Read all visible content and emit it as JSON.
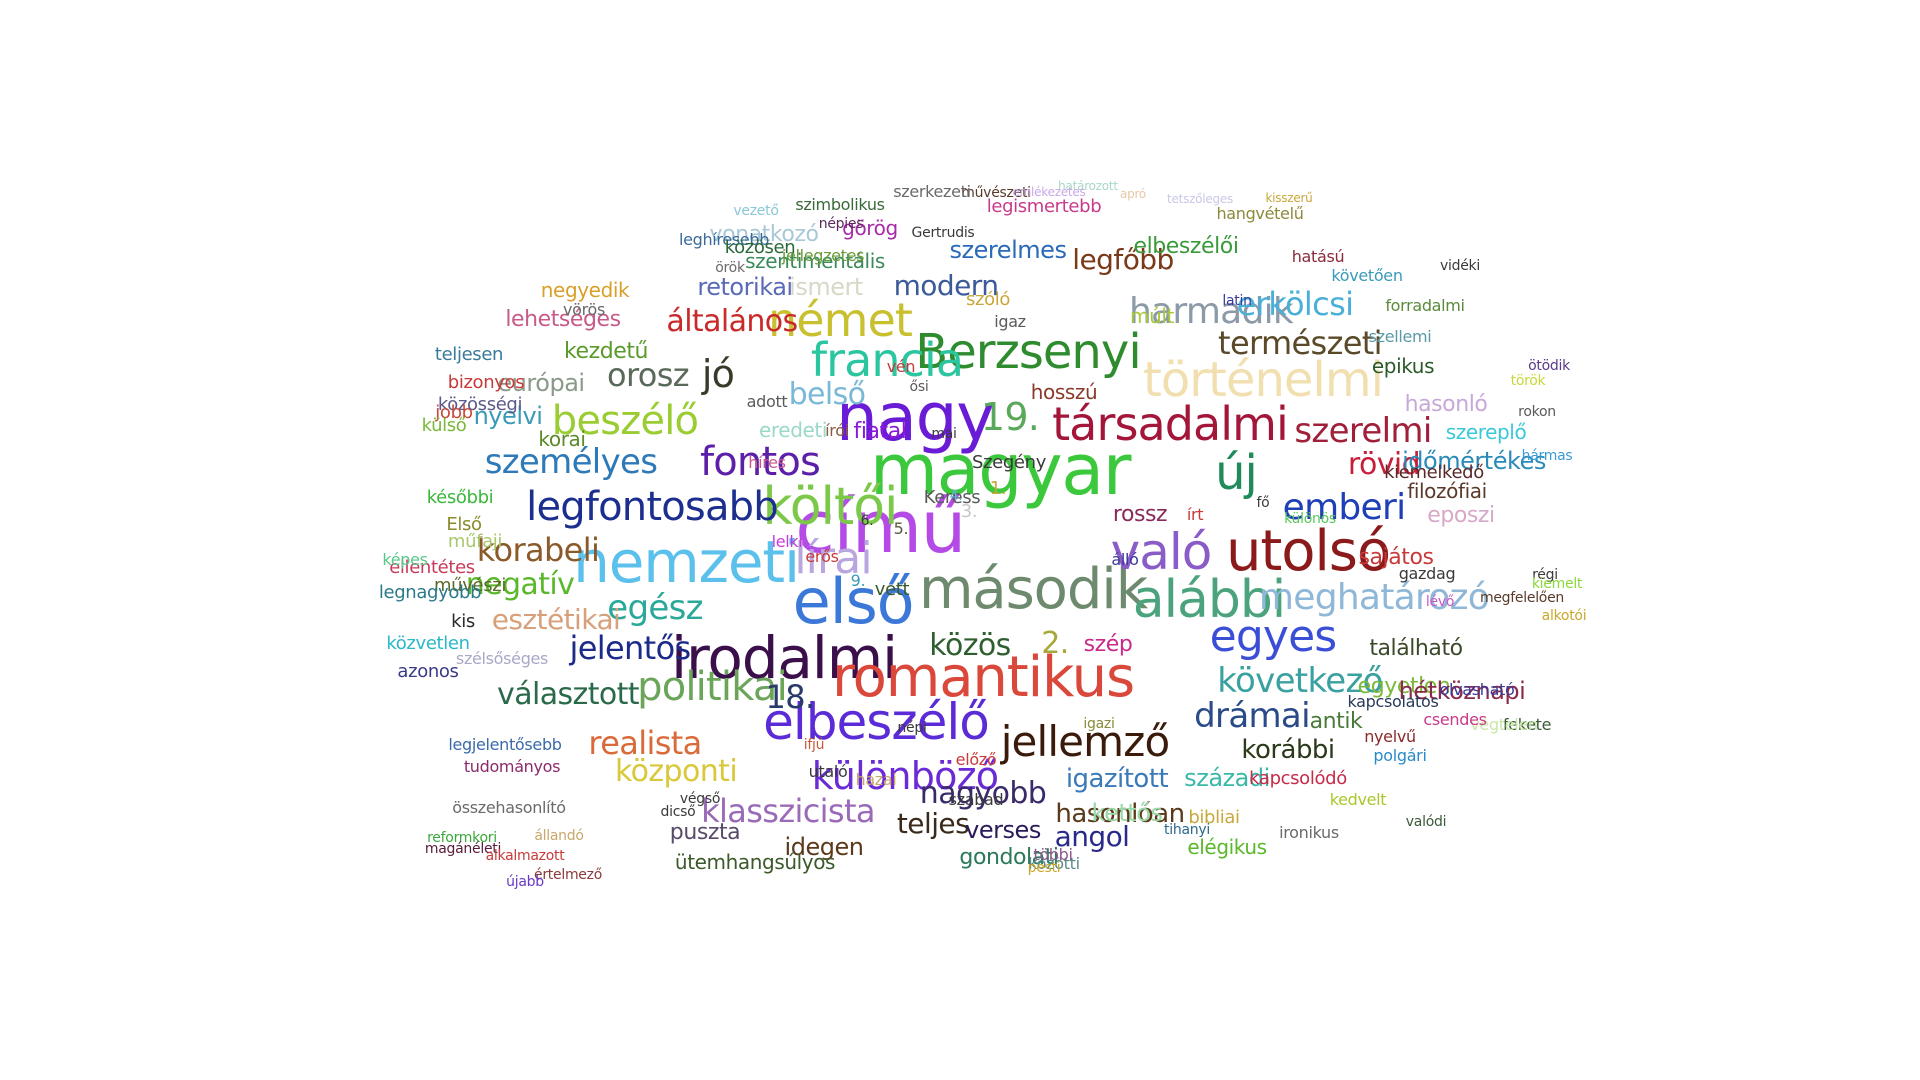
{
  "words": [
    {
      "text": "magyar",
      "color": "#3cc83c"
    },
    {
      "text": "című",
      "color": "#b44be6"
    },
    {
      "text": "nagy",
      "color": "#6a1bd6"
    },
    {
      "text": "első",
      "color": "#3c78d8"
    },
    {
      "text": "irodalmi",
      "color": "#3a0f4a"
    },
    {
      "text": "romantikus",
      "color": "#d9483b"
    },
    {
      "text": "második",
      "color": "#6e8a6e"
    },
    {
      "text": "nemzeti",
      "color": "#5bc0eb"
    },
    {
      "text": "utolsó",
      "color": "#8b1a1a"
    },
    {
      "text": "alábbi",
      "color": "#4aa37c"
    },
    {
      "text": "költői",
      "color": "#7cc94a"
    },
    {
      "text": "elbeszélő",
      "color": "#5a2bd6"
    },
    {
      "text": "történelmi",
      "color": "#f2dfb0"
    },
    {
      "text": "társadalmi",
      "color": "#a3163a"
    },
    {
      "text": "Berzsenyi",
      "color": "#2e8b2e"
    },
    {
      "text": "francia",
      "color": "#2bc6a0"
    },
    {
      "text": "német",
      "color": "#c9c030"
    },
    {
      "text": "egyes",
      "color": "#3a4fd6"
    },
    {
      "text": "való",
      "color": "#8a5cc8"
    },
    {
      "text": "politikai",
      "color": "#6aa55a"
    },
    {
      "text": "legfontosabb",
      "color": "#1c2f8f"
    },
    {
      "text": "jellemző",
      "color": "#3a1a0a"
    },
    {
      "text": "fontos",
      "color": "#5b1fa8"
    },
    {
      "text": "lírai",
      "color": "#b9a6e0"
    },
    {
      "text": "beszélő",
      "color": "#9acd32"
    },
    {
      "text": "harmadik",
      "color": "#8c9aa8"
    },
    {
      "text": "különböző",
      "color": "#6a2bd6"
    },
    {
      "text": "meghatározó",
      "color": "#8fb8d8"
    },
    {
      "text": "emberi",
      "color": "#1f3fb8"
    },
    {
      "text": "új",
      "color": "#1f8b5a"
    },
    {
      "text": "szerelmi",
      "color": "#a0203a"
    },
    {
      "text": "következő",
      "color": "#3aa0a0"
    },
    {
      "text": "személyes",
      "color": "#2e7ab8"
    },
    {
      "text": "egész",
      "color": "#2aa89a"
    },
    {
      "text": "közös",
      "color": "#2f5f2f"
    },
    {
      "text": "természeti",
      "color": "#5a4a2a"
    },
    {
      "text": "realista",
      "color": "#d96a3a"
    },
    {
      "text": "jelentős",
      "color": "#1c2a8a"
    },
    {
      "text": "drámai",
      "color": "#2a4a8a"
    },
    {
      "text": "erkölcsi",
      "color": "#4ab0d8"
    },
    {
      "text": "klasszicista",
      "color": "#9a6ab8"
    },
    {
      "text": "rövid",
      "color": "#c81e3a"
    },
    {
      "text": "központi",
      "color": "#d8c83a"
    },
    {
      "text": "korabeli",
      "color": "#8a5a2a"
    },
    {
      "text": "választott",
      "color": "#2a6a4a"
    },
    {
      "text": "negatív",
      "color": "#5ab82a"
    },
    {
      "text": "19.",
      "color": "#5aa85a"
    },
    {
      "text": "orosz",
      "color": "#5a6a5a"
    },
    {
      "text": "jó",
      "color": "#3a3a2a"
    },
    {
      "text": "belső",
      "color": "#7ab8d8"
    },
    {
      "text": "általános",
      "color": "#c82a2a"
    },
    {
      "text": "legfőbb",
      "color": "#7a3a1a"
    },
    {
      "text": "nagyobb",
      "color": "#3a2a6a"
    },
    {
      "text": "igazított",
      "color": "#3a7ab8"
    },
    {
      "text": "hasonlóan",
      "color": "#5a3a1a"
    },
    {
      "text": "teljes",
      "color": "#3a2a1a"
    },
    {
      "text": "modern",
      "color": "#3a5a9a"
    },
    {
      "text": "esztétikai",
      "color": "#d8a07a"
    },
    {
      "text": "verses",
      "color": "#2a1a5a"
    },
    {
      "text": "angol",
      "color": "#2a2a8a"
    },
    {
      "text": "idegen",
      "color": "#5a3a1a"
    },
    {
      "text": "korábbi",
      "color": "#2a3a1a"
    },
    {
      "text": "ismert",
      "color": "#d8d8c8"
    },
    {
      "text": "szerelmes",
      "color": "#2a6ab8"
    },
    {
      "text": "retorikai",
      "color": "#5a6ab8"
    },
    {
      "text": "kettős",
      "color": "#9ad8a8"
    },
    {
      "text": "századi",
      "color": "#3ab8a8"
    },
    {
      "text": "antik",
      "color": "#4a7a3a"
    },
    {
      "text": "egyetlen",
      "color": "#7ab83a"
    },
    {
      "text": "puszta",
      "color": "#5a4a6a"
    },
    {
      "text": "található",
      "color": "#3a4a2a"
    },
    {
      "text": "hétköznapi",
      "color": "#8a2a4a"
    },
    {
      "text": "időmértékes",
      "color": "#2a8ab8"
    },
    {
      "text": "hasonló",
      "color": "#c8a8d8"
    },
    {
      "text": "eposzi",
      "color": "#d8a8c8"
    },
    {
      "text": "filozófiai",
      "color": "#5a3a2a"
    },
    {
      "text": "sajátos",
      "color": "#c83a3a"
    },
    {
      "text": "epikus",
      "color": "#2a5a2a"
    },
    {
      "text": "szereplő",
      "color": "#3ac8d8"
    },
    {
      "text": "múlt",
      "color": "#a8c83a"
    },
    {
      "text": "szentimentális",
      "color": "#3a8a5a"
    },
    {
      "text": "elbeszélői",
      "color": "#3a9a3a"
    },
    {
      "text": "fiatal",
      "color": "#8a1ad8"
    },
    {
      "text": "18.",
      "color": "#2a3a6a"
    },
    {
      "text": "2.",
      "color": "#a8a83a"
    },
    {
      "text": "európai",
      "color": "#8a9a8a"
    },
    {
      "text": "nyelvi",
      "color": "#3a9ab8"
    },
    {
      "text": "kezdetű",
      "color": "#5a9a2a"
    },
    {
      "text": "eredeti",
      "color": "#9ad8c8"
    },
    {
      "text": "negyedik",
      "color": "#d8a02a"
    },
    {
      "text": "szóló",
      "color": "#c8a83a"
    },
    {
      "text": "vonatkozó",
      "color": "#a8c8d8"
    },
    {
      "text": "görög",
      "color": "#a82aa8"
    },
    {
      "text": "hosszú",
      "color": "#8a3a2a"
    },
    {
      "text": "szép",
      "color": "#c82a8a"
    },
    {
      "text": "rossz",
      "color": "#8a2a5a"
    },
    {
      "text": "gondolati",
      "color": "#2a7a5a"
    },
    {
      "text": "ütemhangsúlyos",
      "color": "#3a5a2a"
    },
    {
      "text": "elégikus",
      "color": "#5ab82a"
    },
    {
      "text": "bibliai",
      "color": "#c8a83a"
    },
    {
      "text": "kapcsolódó",
      "color": "#c82a4a"
    },
    {
      "text": "lehetséges",
      "color": "#c85a8a"
    },
    {
      "text": "korai",
      "color": "#5a8a2a"
    },
    {
      "text": "közösségi",
      "color": "#5a5a8a"
    },
    {
      "text": "jobb",
      "color": "#c84a3a"
    },
    {
      "text": "külső",
      "color": "#7ab83a"
    },
    {
      "text": "bizonyos",
      "color": "#c83a3a"
    },
    {
      "text": "teljesen",
      "color": "#3a7a9a"
    },
    {
      "text": "későbbi",
      "color": "#3ab83a"
    },
    {
      "text": "Első",
      "color": "#8a8a2a"
    },
    {
      "text": "műfaji",
      "color": "#a8c86a"
    },
    {
      "text": "művészi",
      "color": "#5a6a2a"
    },
    {
      "text": "ellentétes",
      "color": "#c83a5a"
    },
    {
      "text": "legnagyobb",
      "color": "#2a7a8a"
    },
    {
      "text": "képes",
      "color": "#5ac88a"
    },
    {
      "text": "közvetlen",
      "color": "#2ab8c8"
    },
    {
      "text": "kis",
      "color": "#2a2a2a"
    },
    {
      "text": "azonos",
      "color": "#3a3a8a"
    },
    {
      "text": "szélsőséges",
      "color": "#a8a8c8"
    },
    {
      "text": "legjelentősebb",
      "color": "#3a6aa8"
    },
    {
      "text": "tudományos",
      "color": "#8a2a6a"
    },
    {
      "text": "összehasonlító",
      "color": "#6a6a6a"
    },
    {
      "text": "reformkori",
      "color": "#3aa83a"
    },
    {
      "text": "magánéleti",
      "color": "#5a1a3a"
    },
    {
      "text": "alkalmazott",
      "color": "#c83a3a"
    },
    {
      "text": "értelmező",
      "color": "#8a3a3a"
    },
    {
      "text": "újabb",
      "color": "#6a3ac8"
    },
    {
      "text": "közötti",
      "color": "#5a8a8a"
    },
    {
      "text": "többi",
      "color": "#8a5a8a"
    },
    {
      "text": "pesti",
      "color": "#c8a82a"
    },
    {
      "text": "ironikus",
      "color": "#6a6a6a"
    },
    {
      "text": "tihanyi",
      "color": "#2a6a8a"
    },
    {
      "text": "kedvelt",
      "color": "#a8c82a"
    },
    {
      "text": "polgári",
      "color": "#2a8ac8"
    },
    {
      "text": "nyelvű",
      "color": "#8a2a2a"
    },
    {
      "text": "fekete",
      "color": "#3a5a3a"
    },
    {
      "text": "végtelen",
      "color": "#c8e8a8"
    },
    {
      "text": "csendes",
      "color": "#c83a8a"
    },
    {
      "text": "kapcsolatos",
      "color": "#2a3a5a"
    },
    {
      "text": "régi",
      "color": "#3a3a3a"
    },
    {
      "text": "olvasható",
      "color": "#3a3a9a"
    },
    {
      "text": "kiemelkedő",
      "color": "#5a2a2a"
    },
    {
      "text": "szellemi",
      "color": "#5a9aa8"
    },
    {
      "text": "forradalmi",
      "color": "#5a8a3a"
    },
    {
      "text": "követően",
      "color": "#3a9ab8"
    },
    {
      "text": "hatású",
      "color": "#8a2a3a"
    },
    {
      "text": "legismertebb",
      "color": "#c83a8a"
    },
    {
      "text": "hangvételű",
      "color": "#8a8a3a"
    },
    {
      "text": "művészeti",
      "color": "#5a3a2a"
    },
    {
      "text": "szerkezeti",
      "color": "#6a6a6a"
    },
    {
      "text": "szimbolikus",
      "color": "#3a6a3a"
    },
    {
      "text": "népies",
      "color": "#5a2a5a"
    },
    {
      "text": "jellegzetes",
      "color": "#6a9a3a"
    },
    {
      "text": "vezető",
      "color": "#8ac8d8"
    },
    {
      "text": "leghíresebb",
      "color": "#3a6a9a"
    },
    {
      "text": "közösen",
      "color": "#2a6a3a"
    },
    {
      "text": "örök",
      "color": "#6a6a6a"
    },
    {
      "text": "vörös",
      "color": "#6a6a6a"
    },
    {
      "text": "Gertrudis",
      "color": "#3a3a3a"
    },
    {
      "text": "Szegény",
      "color": "#3a3a3a"
    },
    {
      "text": "mai",
      "color": "#3a3a3a"
    },
    {
      "text": "Keress",
      "color": "#5a5a5a"
    },
    {
      "text": "adott",
      "color": "#5a5a5a"
    },
    {
      "text": "híres",
      "color": "#c85a8a"
    },
    {
      "text": "lelki",
      "color": "#c83ad8"
    },
    {
      "text": "erős",
      "color": "#c83a3a"
    },
    {
      "text": "vett",
      "color": "#3a5a2a"
    },
    {
      "text": "szabad",
      "color": "#3a3a3a"
    },
    {
      "text": "előző",
      "color": "#c83a3a"
    },
    {
      "text": "álló",
      "color": "#3a3a9a"
    },
    {
      "text": "írt",
      "color": "#c83a3a"
    },
    {
      "text": "lévő",
      "color": "#c85ac8"
    },
    {
      "text": "gazdag",
      "color": "#3a3a3a"
    },
    {
      "text": "különös",
      "color": "#5ac85a"
    },
    {
      "text": "fő",
      "color": "#3a3a3a"
    },
    {
      "text": "latin",
      "color": "#3a3a9a"
    },
    {
      "text": "igaz",
      "color": "#5a5a5a"
    },
    {
      "text": "vén",
      "color": "#c83a3a"
    },
    {
      "text": "ősi",
      "color": "#5a5a5a"
    },
    {
      "text": "írói",
      "color": "#8a5a3a"
    },
    {
      "text": "1.",
      "color": "#c8a83a"
    },
    {
      "text": "3.",
      "color": "#c8c8c8"
    },
    {
      "text": "4.",
      "color": "#5ab8d8"
    },
    {
      "text": "5.",
      "color": "#5a5a3a"
    },
    {
      "text": "6.",
      "color": "#3a3a3a"
    },
    {
      "text": "9.",
      "color": "#3a9ab8"
    },
    {
      "text": "igazi",
      "color": "#8a8a3a"
    },
    {
      "text": "népi",
      "color": "#3a3a3a"
    },
    {
      "text": "hazai",
      "color": "#c8a86a"
    },
    {
      "text": "utaló",
      "color": "#3a3a3a"
    },
    {
      "text": "ifjú",
      "color": "#c85a3a"
    },
    {
      "text": "végső",
      "color": "#3a3a3a"
    },
    {
      "text": "dicső",
      "color": "#3a3a3a"
    },
    {
      "text": "állandó",
      "color": "#c8a86a"
    },
    {
      "text": "valódi",
      "color": "#3a5a3a"
    },
    {
      "text": "alkotói",
      "color": "#c8a82a"
    },
    {
      "text": "megfelelően",
      "color": "#5a3a2a"
    },
    {
      "text": "kiemelt",
      "color": "#8ad83a"
    },
    {
      "text": "hármas",
      "color": "#3a9ad8"
    },
    {
      "text": "ötödik",
      "color": "#5a3a8a"
    },
    {
      "text": "rokon",
      "color": "#5a5a5a"
    },
    {
      "text": "török",
      "color": "#c8d83a"
    },
    {
      "text": "vidéki",
      "color": "#3a3a3a"
    },
    {
      "text": "kisszerű",
      "color": "#c8a83a"
    },
    {
      "text": "tetszőleges",
      "color": "#c8c8e8"
    },
    {
      "text": "apró",
      "color": "#e8c8a8"
    },
    {
      "text": "határozott",
      "color": "#a8d8c8"
    },
    {
      "text": "emlékezetes",
      "color": "#c8a8e8"
    }
  ]
}
